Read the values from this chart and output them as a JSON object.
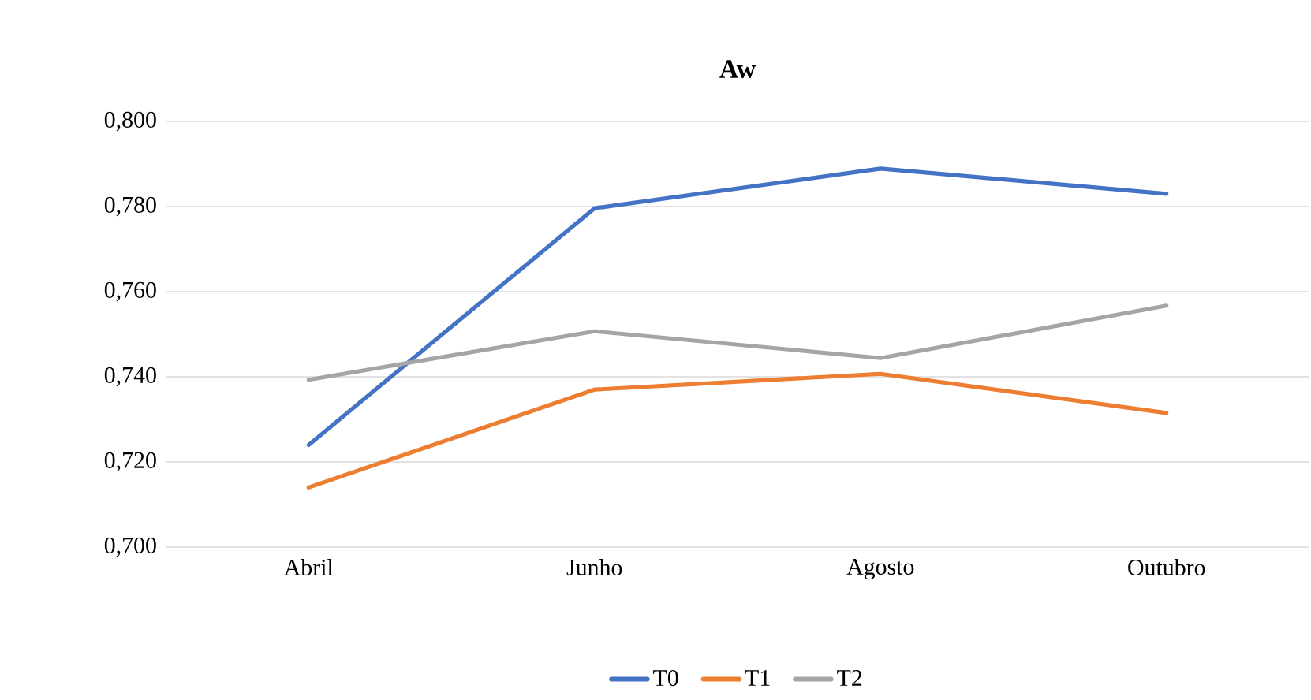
{
  "chart_data": {
    "type": "line",
    "title": "Aw",
    "categories": [
      "Abril",
      "Junho",
      "Agosto",
      "Outubro"
    ],
    "series": [
      {
        "name": "T0",
        "color": "#4472c4",
        "values": [
          0.724,
          0.7796,
          0.7889,
          0.783
        ]
      },
      {
        "name": "T1",
        "color": "#ed7d31",
        "values": [
          0.714,
          0.737,
          0.7407,
          0.7315
        ]
      },
      {
        "name": "T2",
        "color": "#a5a5a5",
        "values": [
          0.7393,
          0.7507,
          0.7444,
          0.7567
        ]
      }
    ],
    "ylim": [
      0.7,
      0.8
    ],
    "yticks": [
      {
        "value": 0.7,
        "label": "0,700"
      },
      {
        "value": 0.72,
        "label": "0,720"
      },
      {
        "value": 0.74,
        "label": "0,740"
      },
      {
        "value": 0.76,
        "label": "0,760"
      },
      {
        "value": 0.78,
        "label": "0,780"
      },
      {
        "value": 0.8,
        "label": "0,800"
      }
    ],
    "grid": "y",
    "legend": "bottom",
    "marker": "none",
    "line_style": "solid"
  }
}
